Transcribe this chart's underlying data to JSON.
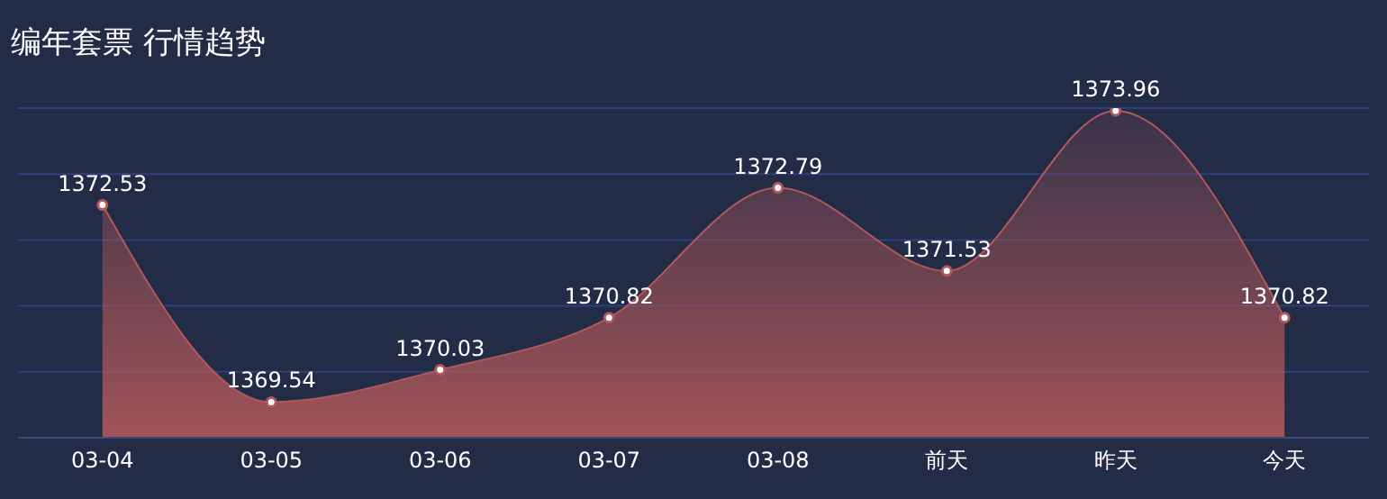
{
  "chart_data": {
    "type": "area",
    "title": "编年套票 行情趋势",
    "categories": [
      "03-04",
      "03-05",
      "03-06",
      "03-07",
      "03-08",
      "前天",
      "昨天",
      "今天"
    ],
    "series": [
      {
        "color": "#b0585a",
        "values": [
          1372.53,
          1369.54,
          1370.03,
          1370.82,
          1372.79,
          1371.53,
          1373.96,
          1370.82
        ]
      }
    ],
    "ylim": [
      1369,
      1374
    ],
    "yticks": [
      {
        "value": 1369,
        "label": null
      },
      {
        "value": 1370,
        "label": null
      },
      {
        "value": 1371,
        "label": null
      },
      {
        "value": 1372,
        "label": null
      },
      {
        "value": 1373,
        "label": null
      },
      {
        "value": 1374,
        "label": null
      }
    ],
    "tick_labels": "x",
    "grid": "y",
    "data_labels": true,
    "marker": "circle"
  }
}
